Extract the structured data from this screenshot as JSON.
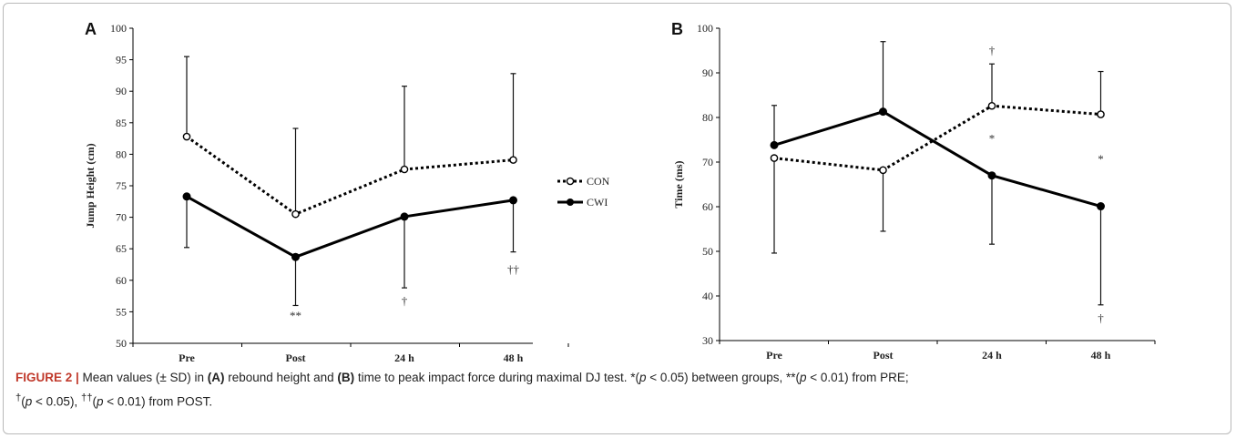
{
  "chart_data": [
    {
      "type": "line",
      "panel": "A",
      "ylabel": "Jump Height (cm)",
      "xlabel": "",
      "categories": [
        "Pre",
        "Post",
        "24 h",
        "48 h"
      ],
      "ylim": [
        50,
        100
      ],
      "yticks": [
        "50",
        "55",
        "60",
        "65",
        "70",
        "75",
        "80",
        "85",
        "90",
        "95",
        "100"
      ],
      "series": [
        {
          "name": "CON",
          "style": "dotted",
          "marker": "open-circle",
          "values": [
            82.8,
            70.5,
            77.6,
            79.1
          ],
          "err_up": [
            95.5,
            84.1,
            90.8,
            92.8
          ],
          "err_down": [
            null,
            null,
            null,
            null
          ]
        },
        {
          "name": "CWI",
          "style": "solid",
          "marker": "filled-circle",
          "values": [
            73.3,
            63.7,
            70.1,
            72.7
          ],
          "err_up": [
            null,
            null,
            null,
            null
          ],
          "err_down": [
            65.2,
            56.0,
            58.8,
            64.5
          ]
        }
      ],
      "annotations": [
        {
          "category": "Post",
          "y": 54.3,
          "text": "**"
        },
        {
          "category": "24 h",
          "y": 56.7,
          "text": "†"
        },
        {
          "category": "48 h",
          "y": 61.7,
          "text": "††"
        }
      ]
    },
    {
      "type": "line",
      "panel": "B",
      "ylabel": "Time (ms)",
      "xlabel": "",
      "categories": [
        "Pre",
        "Post",
        "24 h",
        "48 h"
      ],
      "ylim": [
        30,
        100
      ],
      "yticks": [
        "30",
        "40",
        "50",
        "60",
        "70",
        "80",
        "90",
        "100"
      ],
      "series": [
        {
          "name": "CON",
          "style": "dotted",
          "marker": "open-circle",
          "values": [
            70.9,
            68.2,
            82.6,
            80.7
          ],
          "err_up": [
            null,
            null,
            92.0,
            90.3
          ],
          "err_down": [
            49.6,
            54.5,
            null,
            null
          ]
        },
        {
          "name": "CWI",
          "style": "solid",
          "marker": "filled-circle",
          "values": [
            73.8,
            81.3,
            67.0,
            60.1
          ],
          "err_up": [
            82.7,
            97.0,
            null,
            null
          ],
          "err_down": [
            null,
            null,
            51.6,
            38.0
          ]
        }
      ],
      "annotations": [
        {
          "category": "24 h",
          "y": 95.0,
          "text": "†"
        },
        {
          "category": "24 h",
          "y": 75.2,
          "text": "*"
        },
        {
          "category": "48 h",
          "y": 70.6,
          "text": "*"
        },
        {
          "category": "48 h",
          "y": 35.0,
          "text": "†"
        }
      ]
    }
  ],
  "legend": [
    {
      "name": "CON",
      "style": "dotted"
    },
    {
      "name": "CWI",
      "style": "solid"
    }
  ],
  "caption": {
    "figure": "FIGURE 2 |",
    "t1": " Mean values (± SD) in ",
    "a": "(A)",
    "t2": " rebound height and ",
    "b": "(B)",
    "t3": " time to peak impact force during maximal DJ test. *(",
    "p1": "p",
    "t4": " < 0.05) between groups, **(",
    "p2": "p",
    "t5": " < 0.01) from PRE;",
    "dag1": "†",
    "t6": "(",
    "p3": "p",
    "t7": " < 0.05), ",
    "dag2": "††",
    "t8": "(",
    "p4": "p",
    "t9": " < 0.01) from POST."
  }
}
